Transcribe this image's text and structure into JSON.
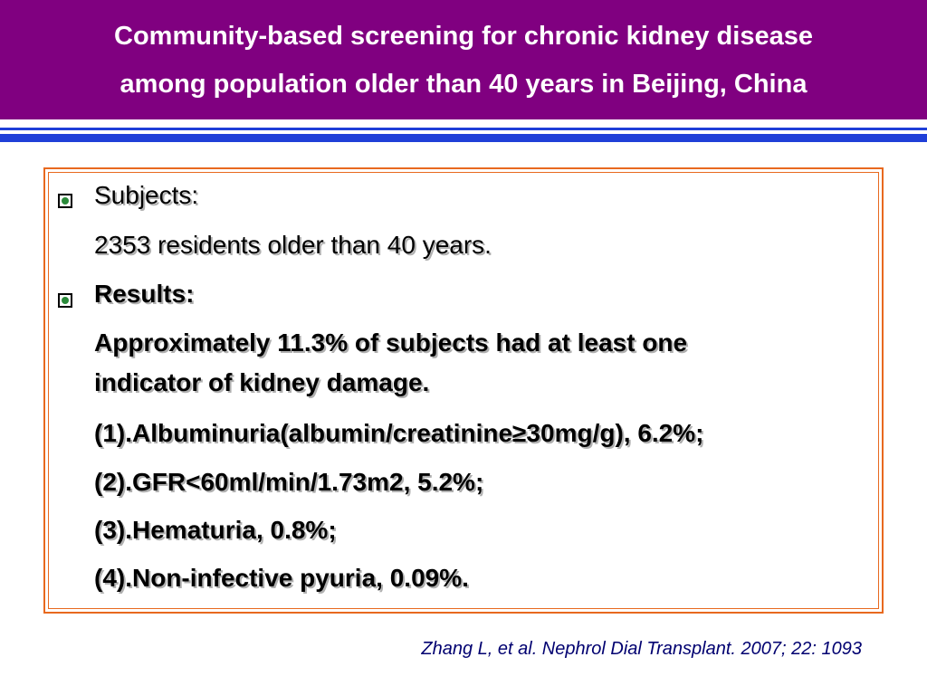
{
  "slide": {
    "title_line1": "Community-based screening for chronic kidney disease",
    "title_line2": "among population older than 40 years in Beijing, China"
  },
  "content": {
    "subjects_heading": "Subjects:",
    "subjects_text": "2353 residents older than 40 years.",
    "results_heading": "Results:",
    "results_summary_line1": "Approximately 11.3% of subjects had at least one",
    "results_summary_line2": "indicator of kidney damage.",
    "findings": [
      "(1).Albuminuria(albumin/creatinine≥30mg/g), 6.2%;",
      "(2).GFR<60ml/min/1.73m2, 5.2%;",
      "(3).Hematuria, 0.8%;",
      "(4).Non-infective pyuria, 0.09%."
    ]
  },
  "citation": "Zhang L, et al. Nephrol Dial Transplant. 2007; 22: 1093",
  "colors": {
    "title_bar": "#800080",
    "rule": "#1f3fd8",
    "frame_border": "#e8691f",
    "bullet_fill": "#2a8a3a",
    "citation_text": "#000070"
  },
  "icons": {
    "bullet": "square-circle-bullet-icon"
  }
}
